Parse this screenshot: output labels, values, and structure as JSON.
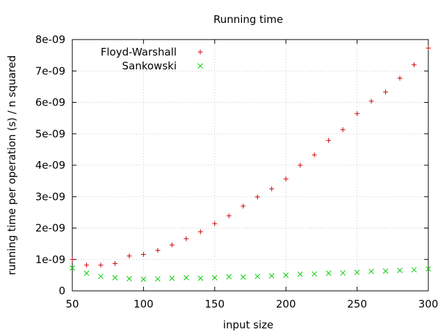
{
  "chart_data": {
    "type": "scatter",
    "title": "Running time",
    "xlabel": "input size",
    "ylabel": "running time per operation (s) / n squared",
    "xlim": [
      50,
      300
    ],
    "ylim": [
      0,
      8e-09
    ],
    "x_ticks": [
      50,
      100,
      150,
      200,
      250,
      300
    ],
    "x_tick_labels": [
      "50",
      "100",
      "150",
      "200",
      "250",
      "300"
    ],
    "y_ticks": [
      0,
      1e-09,
      2e-09,
      3e-09,
      4e-09,
      5e-09,
      6e-09,
      7e-09,
      8e-09
    ],
    "y_tick_labels": [
      "0",
      "1e-09",
      "2e-09",
      "3e-09",
      "4e-09",
      "5e-09",
      "6e-09",
      "7e-09",
      "8e-09"
    ],
    "grid": true,
    "legend_position": "top-left",
    "x": [
      50,
      60,
      70,
      80,
      90,
      100,
      110,
      120,
      130,
      140,
      150,
      160,
      170,
      180,
      190,
      200,
      210,
      220,
      230,
      240,
      250,
      260,
      270,
      280,
      290,
      300
    ],
    "series": [
      {
        "name": "Floyd-Warshall",
        "marker": "plus",
        "color": "#cc0000",
        "values": [
          1e-09,
          8.2e-10,
          8.2e-10,
          8.7e-10,
          1.11e-09,
          1.16e-09,
          1.29e-09,
          1.46e-09,
          1.66e-09,
          1.88e-09,
          2.14e-09,
          2.39e-09,
          2.7e-09,
          2.99e-09,
          3.25e-09,
          3.56e-09,
          4e-09,
          4.33e-09,
          4.79e-09,
          5.13e-09,
          5.64e-09,
          6.04e-09,
          6.33e-09,
          6.77e-09,
          7.2e-09,
          7.73e-09
        ]
      },
      {
        "name": "Sankowski",
        "marker": "cross",
        "color": "#00cc00",
        "values": [
          7.3e-10,
          5.6e-10,
          4.6e-10,
          4.2e-10,
          3.9e-10,
          3.7e-10,
          3.8e-10,
          4e-10,
          4.2e-10,
          4e-10,
          4.2e-10,
          4.5e-10,
          4.4e-10,
          4.6e-10,
          4.8e-10,
          5e-10,
          5.3e-10,
          5.4e-10,
          5.6e-10,
          5.7e-10,
          5.9e-10,
          6.2e-10,
          6.3e-10,
          6.5e-10,
          6.7e-10,
          7e-10
        ]
      }
    ]
  }
}
